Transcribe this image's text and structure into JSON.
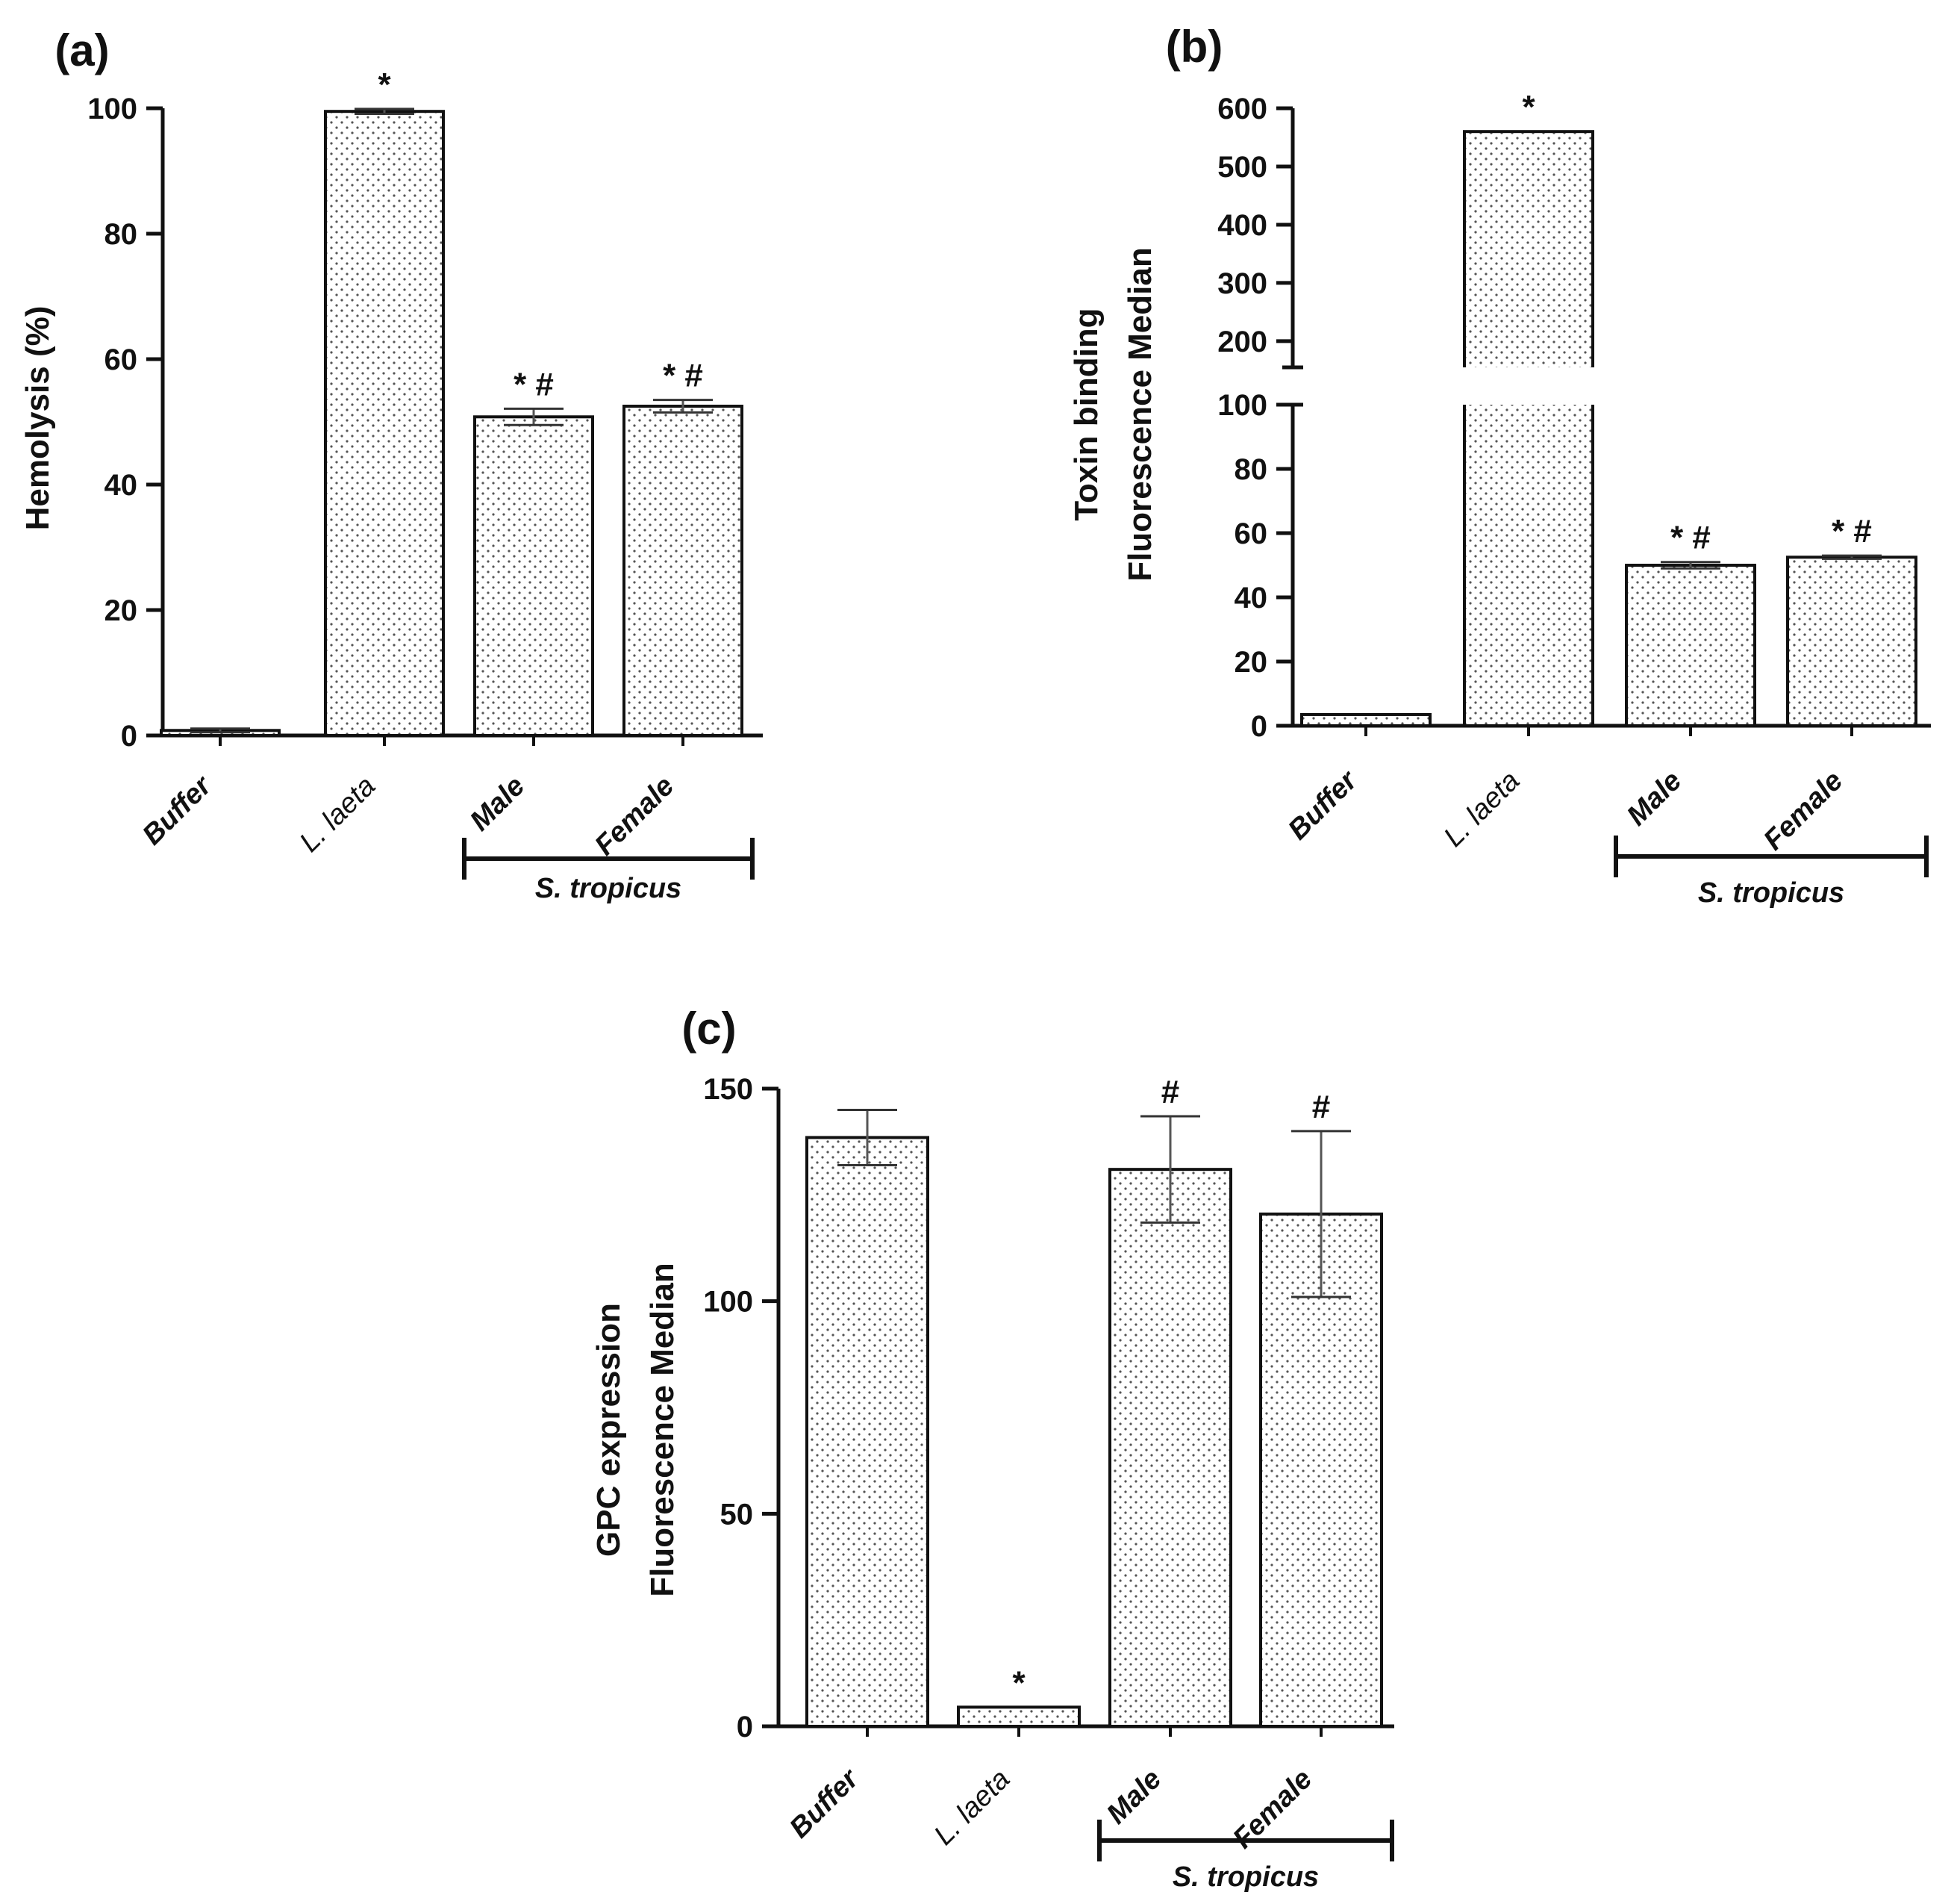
{
  "chart_data": [
    {
      "panel": "(a)",
      "type": "bar",
      "categories": [
        "Buffer",
        "L. laeta",
        "Male",
        "Female"
      ],
      "values": [
        0.8,
        99.5,
        50.8,
        52.5
      ],
      "errors": [
        0.3,
        0.4,
        1.3,
        1.0
      ],
      "annotations": [
        "",
        "*",
        "* #",
        "* #"
      ],
      "ylabel": "Hemolysis (%)",
      "xlabel": "",
      "ylim": [
        0,
        100
      ],
      "yticks": [
        0,
        20,
        40,
        60,
        80,
        100
      ],
      "group_label": "S. tropicus",
      "group_members": [
        "Male",
        "Female"
      ],
      "grid": false
    },
    {
      "panel": "(b)",
      "type": "bar",
      "categories": [
        "Buffer",
        "L. laeta",
        "Male",
        "Female"
      ],
      "values": [
        3.5,
        560,
        50,
        52.5
      ],
      "errors": [
        0,
        0,
        1.0,
        0.5
      ],
      "annotations": [
        "",
        "*",
        "* #",
        "* #"
      ],
      "ylabel_lines": [
        "Toxin binding",
        "Fluorescence Median"
      ],
      "xlabel": "",
      "axis_break": true,
      "ylim_lower": [
        0,
        100
      ],
      "yticks_lower": [
        0,
        20,
        40,
        60,
        80,
        100
      ],
      "ylim_upper": [
        155,
        600
      ],
      "yticks_upper": [
        200,
        300,
        400,
        500,
        600
      ],
      "group_label": "S. tropicus",
      "group_members": [
        "Male",
        "Female"
      ],
      "grid": false
    },
    {
      "panel": "(c)",
      "type": "bar",
      "categories": [
        "Buffer",
        "L. laeta",
        "Male",
        "Female"
      ],
      "values": [
        138.5,
        4.5,
        131,
        120.5
      ],
      "errors": [
        6.5,
        0,
        12.5,
        19.5
      ],
      "annotations": [
        "",
        "*",
        "#",
        "#"
      ],
      "ylabel_lines": [
        "GPC expression",
        "Fluorescence Median"
      ],
      "xlabel": "",
      "ylim": [
        0,
        150
      ],
      "yticks": [
        0,
        50,
        100,
        150
      ],
      "group_label": "S. tropicus",
      "group_members": [
        "Male",
        "Female"
      ],
      "grid": false
    }
  ]
}
